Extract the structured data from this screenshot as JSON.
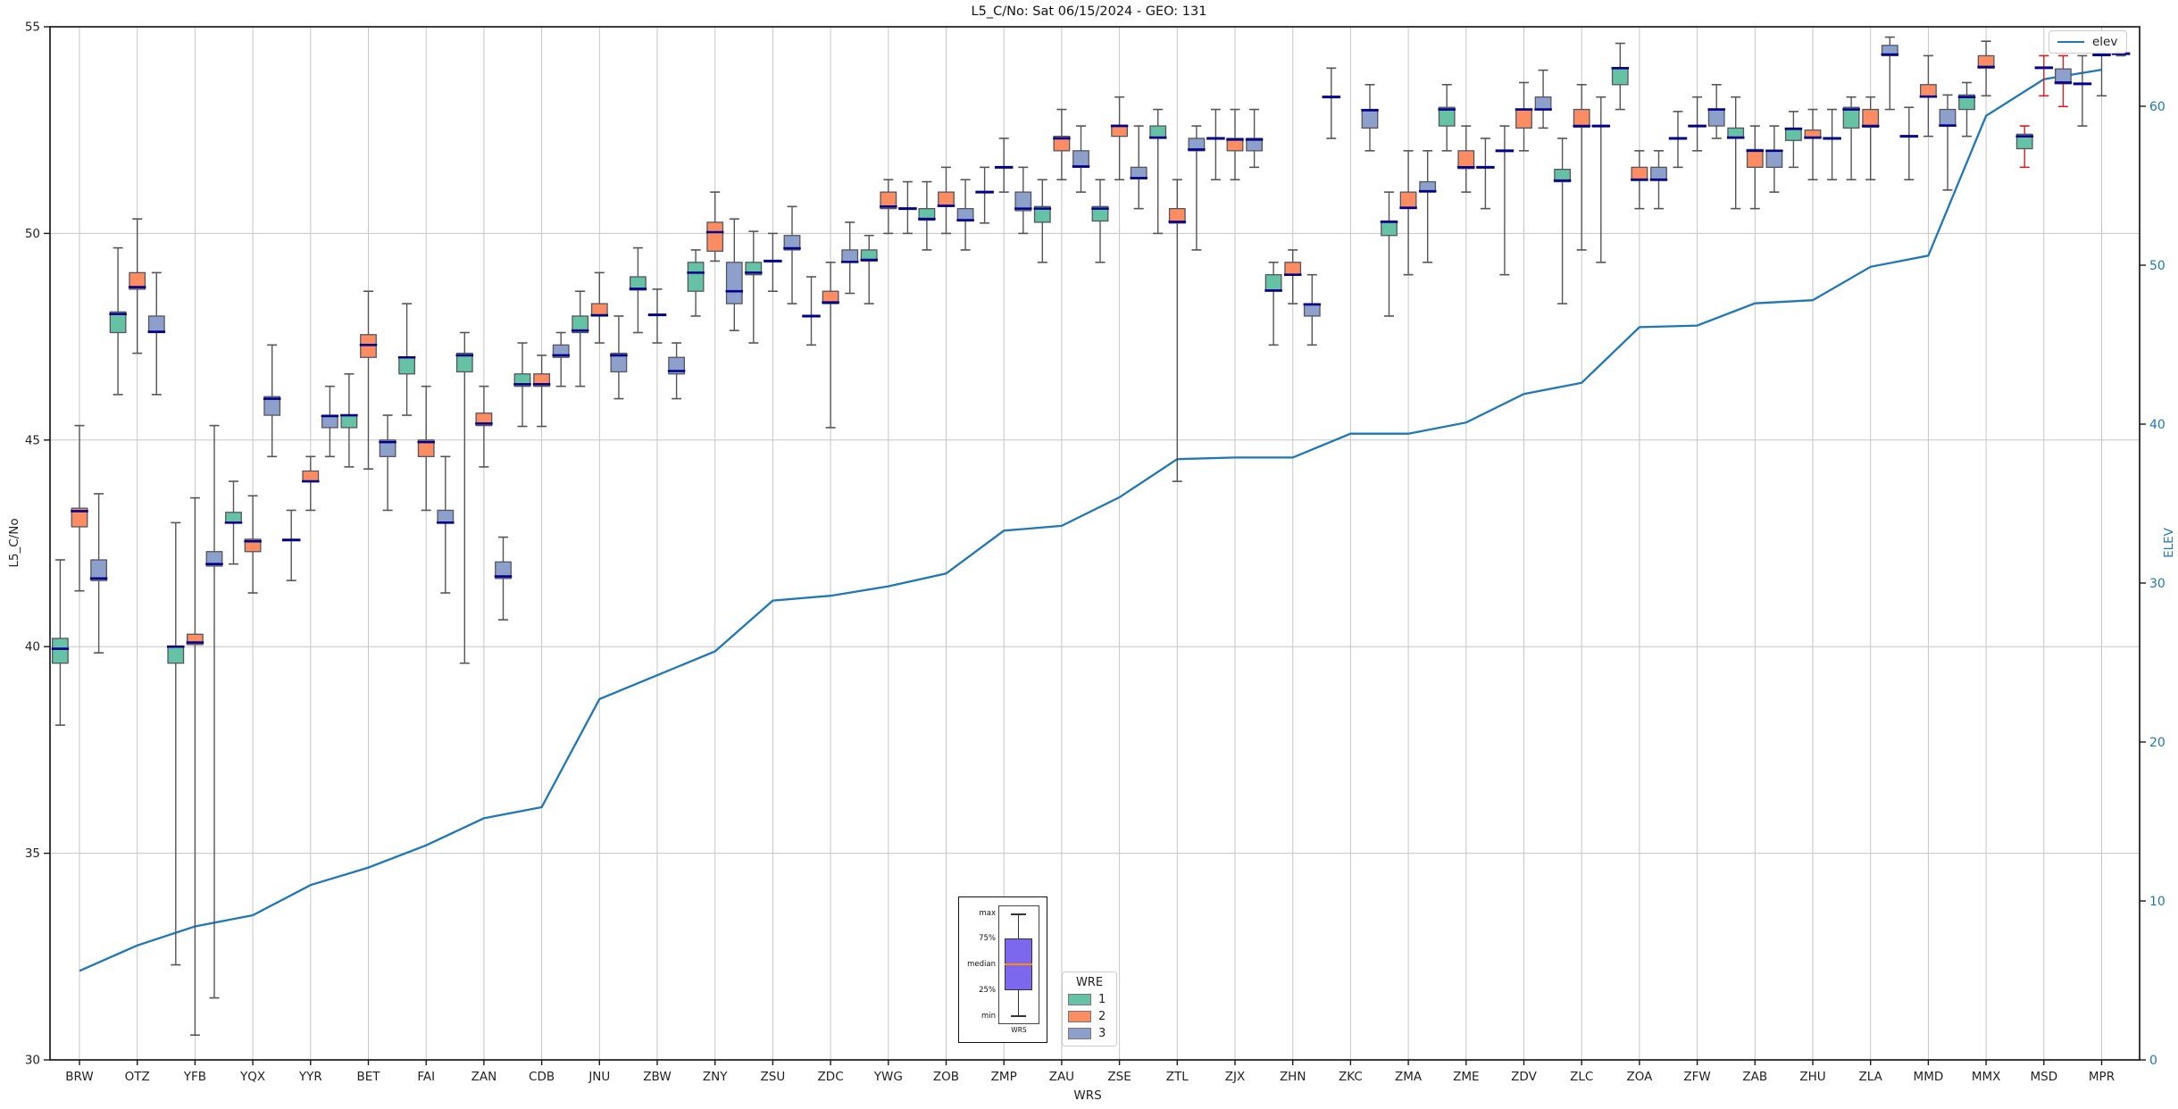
{
  "chart_data": {
    "type": "boxplot+line",
    "title": "L5_C/No: Sat 06/15/2024 - GEO: 131",
    "xlabel": "WRS",
    "ylabel_left": "L5_C/No",
    "ylabel_right": "ELEV",
    "ylim_left": [
      30,
      55
    ],
    "yticks_left": [
      30,
      35,
      40,
      45,
      50,
      55
    ],
    "ylim_right": [
      0,
      65
    ],
    "yticks_right": [
      0,
      10,
      20,
      30,
      40,
      50,
      60
    ],
    "grid": true,
    "box_value_order": [
      "min",
      "q1",
      "median",
      "q3",
      "max"
    ],
    "median_color": "#00008b",
    "whisker_color": "#555555",
    "red_whisker_categories": [
      "MSD"
    ],
    "red_whisker_color": "#d42020",
    "categories": [
      "BRW",
      "OTZ",
      "YFB",
      "YQX",
      "YYR",
      "BET",
      "FAI",
      "ZAN",
      "CDB",
      "JNU",
      "ZBW",
      "ZNY",
      "ZSU",
      "ZDC",
      "YWG",
      "ZOB",
      "ZMP",
      "ZAU",
      "ZSE",
      "ZTL",
      "ZJX",
      "ZHN",
      "ZKC",
      "ZMA",
      "ZME",
      "ZDV",
      "ZLC",
      "ZOA",
      "ZFW",
      "ZAB",
      "ZHU",
      "ZLA",
      "MMD",
      "MMX",
      "MSD",
      "MPR"
    ],
    "series": [
      {
        "name": "1",
        "color": "#66c2a5",
        "boxes": [
          [
            38.1,
            39.6,
            39.95,
            40.2,
            42.1
          ],
          [
            46.1,
            47.6,
            48.05,
            48.1,
            49.65
          ],
          [
            32.3,
            39.6,
            40.0,
            40.0,
            43.0
          ],
          [
            42.0,
            43.0,
            43.0,
            43.25,
            44.0
          ],
          [
            41.6,
            42.58,
            42.58,
            42.58,
            43.3
          ],
          [
            44.35,
            45.3,
            45.6,
            45.6,
            46.6
          ],
          [
            45.6,
            46.6,
            47.0,
            47.0,
            48.3
          ],
          [
            39.6,
            46.65,
            47.05,
            47.1,
            47.6
          ],
          [
            45.33,
            46.3,
            46.35,
            46.6,
            47.35
          ],
          [
            46.3,
            47.6,
            47.65,
            48.0,
            48.6
          ],
          [
            47.6,
            48.63,
            48.66,
            48.95,
            49.65
          ],
          [
            48.0,
            48.6,
            49.05,
            49.3,
            49.6
          ],
          [
            47.35,
            49.0,
            49.05,
            49.3,
            50.05
          ],
          [
            47.3,
            48.0,
            48.0,
            48.0,
            48.95
          ],
          [
            48.3,
            49.33,
            49.36,
            49.6,
            49.95
          ],
          [
            49.6,
            50.32,
            50.35,
            50.6,
            51.25
          ],
          [
            50.25,
            51.0,
            51.0,
            51.0,
            51.6
          ],
          [
            49.3,
            50.27,
            50.6,
            50.65,
            51.3
          ],
          [
            49.3,
            50.3,
            50.6,
            50.65,
            51.3
          ],
          [
            50.0,
            52.3,
            52.32,
            52.6,
            53.0
          ],
          [
            51.3,
            52.3,
            52.3,
            52.3,
            53.0
          ],
          [
            47.3,
            48.6,
            48.62,
            49.0,
            49.3
          ],
          [
            52.3,
            53.3,
            53.3,
            53.3,
            54.0
          ],
          [
            48.0,
            49.95,
            50.28,
            50.3,
            51.0
          ],
          [
            52.0,
            52.6,
            53.0,
            53.05,
            53.6
          ],
          [
            49.0,
            52.0,
            52.0,
            52.0,
            52.6
          ],
          [
            48.3,
            51.25,
            51.28,
            51.55,
            52.3
          ],
          [
            53.0,
            53.6,
            54.0,
            54.0,
            54.6
          ],
          [
            51.6,
            52.3,
            52.3,
            52.3,
            52.95
          ],
          [
            50.6,
            52.3,
            52.32,
            52.55,
            53.3
          ],
          [
            51.6,
            52.25,
            52.53,
            52.55,
            52.95
          ],
          [
            51.3,
            52.55,
            53.0,
            53.05,
            53.3
          ],
          [
            51.3,
            52.35,
            52.35,
            52.35,
            53.05
          ],
          [
            52.35,
            53.0,
            53.3,
            53.35,
            53.65
          ],
          [
            51.6,
            52.05,
            52.35,
            52.4,
            52.6
          ],
          [
            52.6,
            53.6,
            53.62,
            53.62,
            54.3
          ]
        ]
      },
      {
        "name": "2",
        "color": "#fc8d62",
        "boxes": [
          [
            41.35,
            42.9,
            43.28,
            43.35,
            45.35
          ],
          [
            47.1,
            48.65,
            48.7,
            49.05,
            50.35
          ],
          [
            30.6,
            40.05,
            40.1,
            40.3,
            43.6
          ],
          [
            41.3,
            42.3,
            42.55,
            42.6,
            43.65
          ],
          [
            43.3,
            44.0,
            44.0,
            44.25,
            44.6
          ],
          [
            44.3,
            47.0,
            47.3,
            47.55,
            48.6
          ],
          [
            43.3,
            44.6,
            44.95,
            45.0,
            46.3
          ],
          [
            44.35,
            45.35,
            45.4,
            45.65,
            46.3
          ],
          [
            45.33,
            46.3,
            46.35,
            46.6,
            47.05
          ],
          [
            47.35,
            48.0,
            48.02,
            48.3,
            49.05
          ],
          [
            47.35,
            48.03,
            48.03,
            48.03,
            48.65
          ],
          [
            49.33,
            49.57,
            50.03,
            50.27,
            51.0
          ],
          [
            48.6,
            49.33,
            49.33,
            49.33,
            50.0
          ],
          [
            45.3,
            48.3,
            48.33,
            48.6,
            49.3
          ],
          [
            50.0,
            50.6,
            50.65,
            51.0,
            51.3
          ],
          [
            50.0,
            50.65,
            50.67,
            51.0,
            51.6
          ],
          [
            51.0,
            51.6,
            51.6,
            51.6,
            52.3
          ],
          [
            51.3,
            52.0,
            52.3,
            52.35,
            53.0
          ],
          [
            51.3,
            52.35,
            52.6,
            52.62,
            53.3
          ],
          [
            44.0,
            50.25,
            50.28,
            50.6,
            51.3
          ],
          [
            51.3,
            52.0,
            52.27,
            52.3,
            53.0
          ],
          [
            48.3,
            49.0,
            49.0,
            49.3,
            49.6
          ],
          null,
          [
            49.0,
            50.6,
            50.62,
            51.0,
            52.0
          ],
          [
            51.0,
            51.57,
            51.6,
            52.0,
            52.6
          ],
          [
            52.0,
            52.55,
            53.0,
            53.0,
            53.65
          ],
          [
            49.6,
            52.57,
            52.6,
            53.0,
            53.6
          ],
          [
            50.6,
            51.28,
            51.3,
            51.6,
            52.0
          ],
          [
            52.0,
            52.6,
            52.6,
            52.6,
            53.3
          ],
          [
            50.6,
            51.6,
            52.0,
            52.03,
            52.6
          ],
          [
            51.3,
            52.3,
            52.32,
            52.5,
            53.0
          ],
          [
            51.3,
            52.57,
            52.6,
            53.0,
            53.3
          ],
          [
            52.35,
            53.3,
            53.31,
            53.6,
            54.3
          ],
          [
            53.33,
            54.0,
            54.03,
            54.3,
            54.65
          ],
          [
            53.33,
            54.01,
            54.01,
            54.01,
            54.3
          ],
          [
            53.33,
            54.32,
            54.32,
            54.32,
            54.4
          ]
        ]
      },
      {
        "name": "3",
        "color": "#8da0cb",
        "boxes": [
          [
            39.85,
            41.6,
            41.65,
            42.1,
            43.7
          ],
          [
            46.1,
            47.6,
            47.62,
            48.0,
            49.05
          ],
          [
            31.5,
            41.95,
            42.0,
            42.3,
            45.35
          ],
          [
            44.6,
            45.6,
            46.0,
            46.05,
            47.3
          ],
          [
            44.6,
            45.3,
            45.58,
            45.6,
            46.3
          ],
          [
            43.3,
            44.6,
            44.95,
            45.0,
            45.6
          ],
          [
            41.3,
            43.0,
            43.0,
            43.3,
            44.6
          ],
          [
            40.65,
            41.65,
            41.7,
            42.05,
            42.65
          ],
          [
            46.3,
            47.0,
            47.05,
            47.3,
            47.6
          ],
          [
            46.0,
            46.65,
            47.05,
            47.1,
            48.0
          ],
          [
            46.0,
            46.6,
            46.67,
            47.0,
            47.35
          ],
          [
            47.65,
            48.3,
            48.6,
            49.3,
            50.35
          ],
          [
            48.3,
            49.6,
            49.64,
            49.95,
            50.65
          ],
          [
            48.55,
            49.3,
            49.31,
            49.6,
            50.27
          ],
          [
            50.0,
            50.6,
            50.6,
            50.6,
            51.25
          ],
          [
            49.6,
            50.3,
            50.32,
            50.6,
            51.3
          ],
          [
            50.0,
            50.55,
            50.6,
            51.0,
            51.6
          ],
          [
            51.0,
            51.6,
            51.62,
            52.0,
            52.6
          ],
          [
            50.6,
            51.32,
            51.34,
            51.6,
            52.6
          ],
          [
            49.6,
            52.0,
            52.03,
            52.3,
            52.6
          ],
          [
            51.6,
            52.0,
            52.27,
            52.3,
            53.0
          ],
          [
            47.3,
            48.0,
            48.28,
            48.3,
            49.0
          ],
          [
            52.0,
            52.55,
            52.98,
            53.0,
            53.6
          ],
          [
            49.3,
            51.0,
            51.02,
            51.25,
            52.0
          ],
          [
            50.6,
            51.6,
            51.6,
            51.6,
            52.3
          ],
          [
            52.55,
            53.0,
            53.0,
            53.3,
            53.95
          ],
          [
            49.3,
            52.6,
            52.6,
            52.6,
            53.3
          ],
          [
            50.6,
            51.28,
            51.3,
            51.6,
            52.0
          ],
          [
            52.3,
            52.6,
            53.0,
            53.0,
            53.6
          ],
          [
            51.0,
            51.6,
            52.0,
            52.0,
            52.6
          ],
          [
            51.3,
            52.3,
            52.3,
            52.3,
            53.0
          ],
          [
            53.0,
            54.3,
            54.33,
            54.55,
            54.75
          ],
          [
            51.05,
            52.6,
            52.61,
            53.0,
            53.35
          ],
          null,
          [
            53.07,
            53.62,
            53.65,
            53.98,
            54.3
          ],
          [
            54.3,
            54.35,
            54.35,
            54.35,
            54.4
          ]
        ]
      }
    ],
    "elev_line": {
      "label": "elev",
      "color": "#1f77b4",
      "values": [
        5.6,
        7.2,
        8.4,
        9.1,
        11.0,
        12.1,
        13.5,
        15.2,
        15.9,
        22.7,
        24.2,
        25.7,
        28.9,
        29.2,
        29.8,
        30.6,
        33.3,
        33.6,
        35.4,
        37.8,
        37.9,
        37.9,
        39.4,
        39.4,
        40.1,
        41.9,
        42.6,
        46.1,
        46.2,
        47.6,
        47.8,
        49.9,
        50.6,
        59.4,
        61.7,
        62.3
      ]
    }
  },
  "legend_elev": {
    "label": "elev"
  },
  "legend_wre": {
    "title": "WRE",
    "items": [
      {
        "label": "1",
        "color": "#66c2a5"
      },
      {
        "label": "2",
        "color": "#fc8d62"
      },
      {
        "label": "3",
        "color": "#8da0cb"
      }
    ]
  },
  "inset": {
    "labels": [
      "max",
      "75%",
      "median",
      "25%",
      "min"
    ],
    "xlabel": "WRS",
    "box_color": "#7b68ee",
    "median_color": "#ff8c00"
  }
}
